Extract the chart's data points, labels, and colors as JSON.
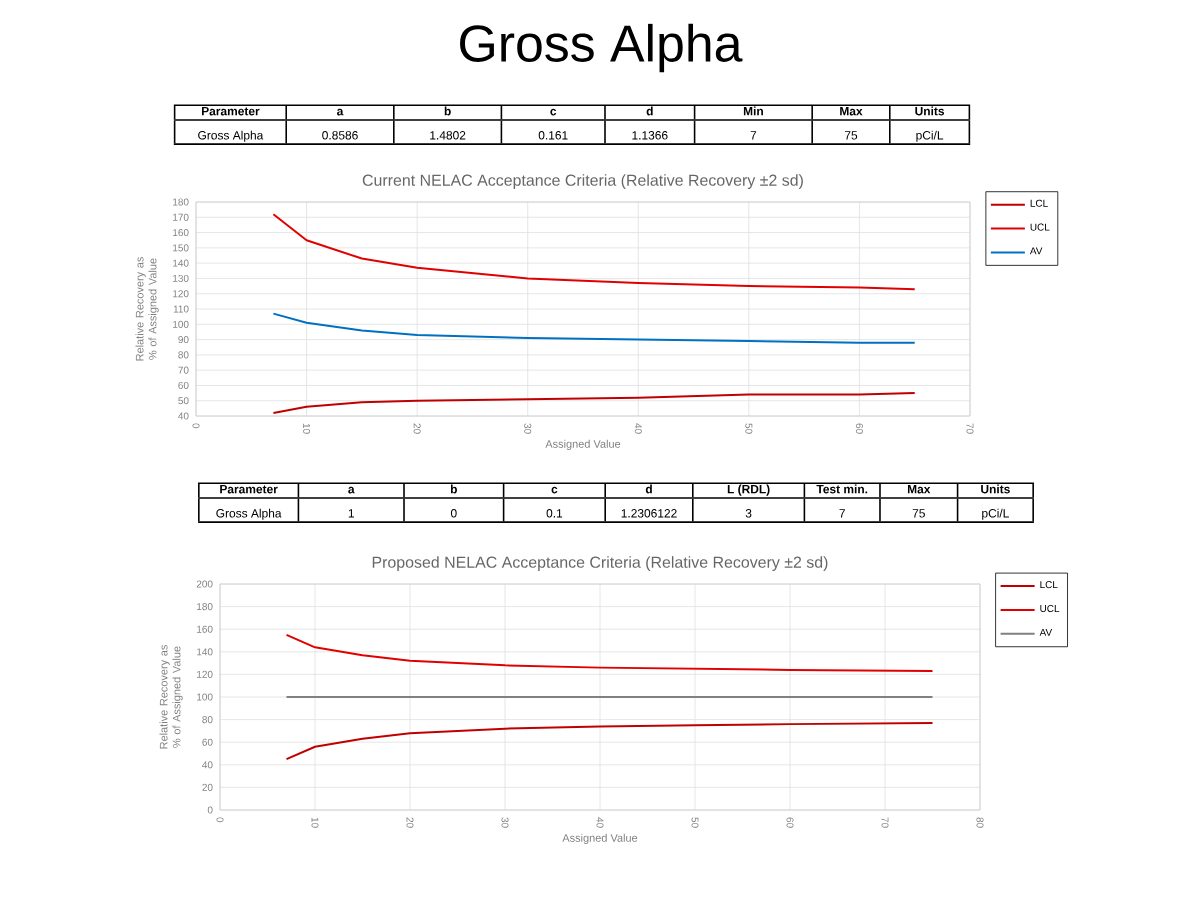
{
  "chart_data": [
    {
      "type": "other",
      "title": "Gross Alpha",
      "categories": [
        "Parameter",
        "a",
        "b",
        "c",
        "d",
        "Min",
        "Max",
        "Units"
      ],
      "annotations": [
        "Gross Alpha",
        "0.8586",
        "1.4802",
        "0.161",
        "1.1366",
        "7",
        "75",
        "pCi/L"
      ]
    },
    {
      "type": "line",
      "title": "Current NELAC Acceptance Criteria (Relative  Recovery  ±2 sd)",
      "xlabel": "Assigned Value",
      "ylabel": "Relative Recovery as % of Assigned Value",
      "xlim": [
        0,
        70
      ],
      "xticks": [
        0,
        10,
        20,
        30,
        40,
        50,
        60,
        70
      ],
      "ylim": [
        40,
        180
      ],
      "yticks": [
        40,
        50,
        60,
        70,
        80,
        90,
        100,
        110,
        120,
        130,
        140,
        150,
        160,
        170,
        180
      ],
      "grid": true,
      "legend": "right",
      "x": [
        7,
        10,
        15,
        20,
        30,
        40,
        50,
        60,
        65
      ],
      "series": [
        {
          "name": "LCL",
          "color": "#c00000",
          "values": [
            42,
            46,
            49,
            50,
            51,
            52,
            54,
            54,
            55
          ]
        },
        {
          "name": "UCL",
          "color": "#e00000",
          "values": [
            172,
            155,
            143,
            137,
            130,
            127,
            125,
            124,
            123
          ]
        },
        {
          "name": "AV",
          "color": "#0070c0",
          "values": [
            107,
            101,
            96,
            93,
            91,
            90,
            89,
            88,
            88
          ]
        }
      ]
    },
    {
      "type": "other",
      "categories": [
        "Parameter",
        "a",
        "b",
        "c",
        "d",
        "L (RDL)",
        "Test min.",
        "Max",
        "Units"
      ],
      "annotations": [
        "Gross Alpha",
        "1",
        "0",
        "0.1",
        "1.2306122",
        "3",
        "7",
        "75",
        "pCi/L"
      ]
    },
    {
      "type": "line",
      "title": "Proposed NELAC Acceptance Criteria (Relative  Recovery  ±2 sd)",
      "xlabel": "Assigned Value",
      "ylabel": "Relative Recovery as % of Assigned Value",
      "xlim": [
        0,
        80
      ],
      "xticks": [
        0,
        10,
        20,
        30,
        40,
        50,
        60,
        70,
        80
      ],
      "ylim": [
        0,
        200
      ],
      "yticks": [
        0,
        20,
        40,
        60,
        80,
        100,
        120,
        140,
        160,
        180,
        200
      ],
      "grid": true,
      "legend": "right",
      "x": [
        7,
        10,
        15,
        20,
        30,
        40,
        50,
        60,
        75
      ],
      "series": [
        {
          "name": "LCL",
          "color": "#c00000",
          "values": [
            45,
            56,
            63,
            68,
            72,
            74,
            75,
            76,
            77
          ]
        },
        {
          "name": "UCL",
          "color": "#e00000",
          "values": [
            155,
            144,
            137,
            132,
            128,
            126,
            125,
            124,
            123
          ]
        },
        {
          "name": "AV",
          "color": "#808080",
          "x": [
            7,
            75
          ],
          "values": [
            100,
            100
          ]
        }
      ]
    }
  ]
}
